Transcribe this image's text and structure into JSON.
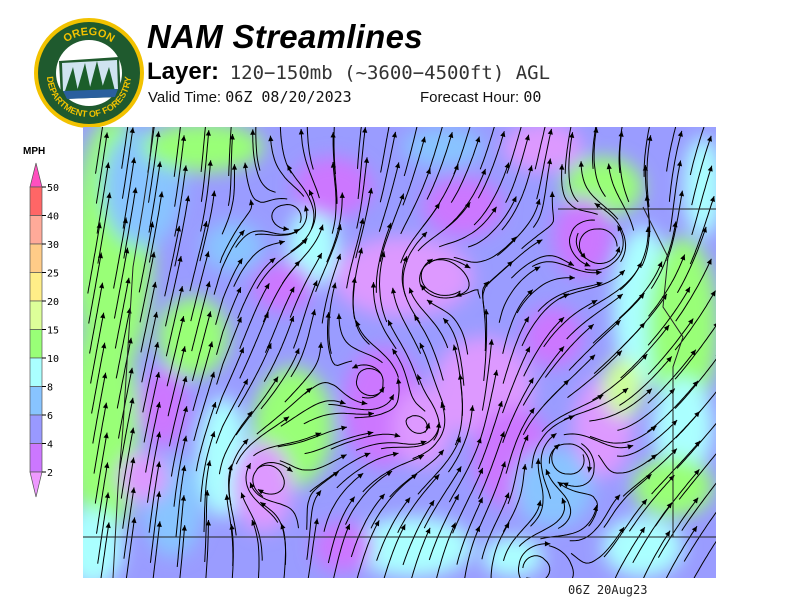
{
  "header": {
    "logo_text": "OREGON DEPARTMENT OF FORESTRY",
    "title": "NAM Streamlines",
    "layer_label": "Layer:",
    "layer_value": "120−150mb (~3600−4500ft) AGL",
    "valid_label": "Valid Time:",
    "valid_value": "06Z 08/20/2023",
    "forecast_label": "Forecast Hour:",
    "forecast_value": "00"
  },
  "legend": {
    "unit": "MPH",
    "top_arrow_color": "#ff4fbf",
    "bottom_arrow_color": "#ee99ff",
    "bins": [
      {
        "label": "50",
        "color": "#ff6666"
      },
      {
        "label": "40",
        "color": "#ffaa99"
      },
      {
        "label": "30",
        "color": "#ffcc88"
      },
      {
        "label": "25",
        "color": "#ffee88"
      },
      {
        "label": "20",
        "color": "#ddff99"
      },
      {
        "label": "15",
        "color": "#99ff77"
      },
      {
        "label": "10",
        "color": "#aaffff"
      },
      {
        "label": "8",
        "color": "#88c4ff"
      },
      {
        "label": "6",
        "color": "#9999ff"
      },
      {
        "label": "4",
        "color": "#cc77ff"
      },
      {
        "label": "2",
        "color": null
      }
    ]
  },
  "footer": {
    "timestamp": "06Z 20Aug23"
  }
}
